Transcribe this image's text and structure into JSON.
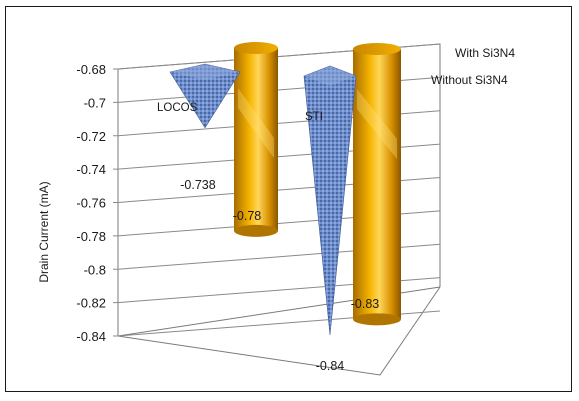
{
  "chart_data": {
    "type": "bar",
    "subtype": "3d-cone-cylinder",
    "title": "",
    "xlabel": "",
    "ylabel": "Drain Current (mA)",
    "ylim": [
      -0.84,
      -0.68
    ],
    "y_ticks": [
      "-0.68",
      "-0.7",
      "-0.72",
      "-0.74",
      "-0.76",
      "-0.78",
      "-0.8",
      "-0.82",
      "-0.84"
    ],
    "categories": [
      "LOCOS",
      "STI"
    ],
    "series": [
      {
        "name": "Without Si3N4",
        "values": [
          -0.738,
          -0.84
        ],
        "value_labels": [
          "-0.738",
          "-0.84"
        ],
        "shape": "cone",
        "color": "#5b7fc0"
      },
      {
        "name": "With Si3N4",
        "values": [
          -0.78,
          -0.83
        ],
        "value_labels": [
          "-0.78",
          "-0.83"
        ],
        "shape": "cylinder",
        "color": "#e0a000"
      }
    ],
    "grid": true,
    "legend_position": "right (series labels on depth axis)"
  }
}
